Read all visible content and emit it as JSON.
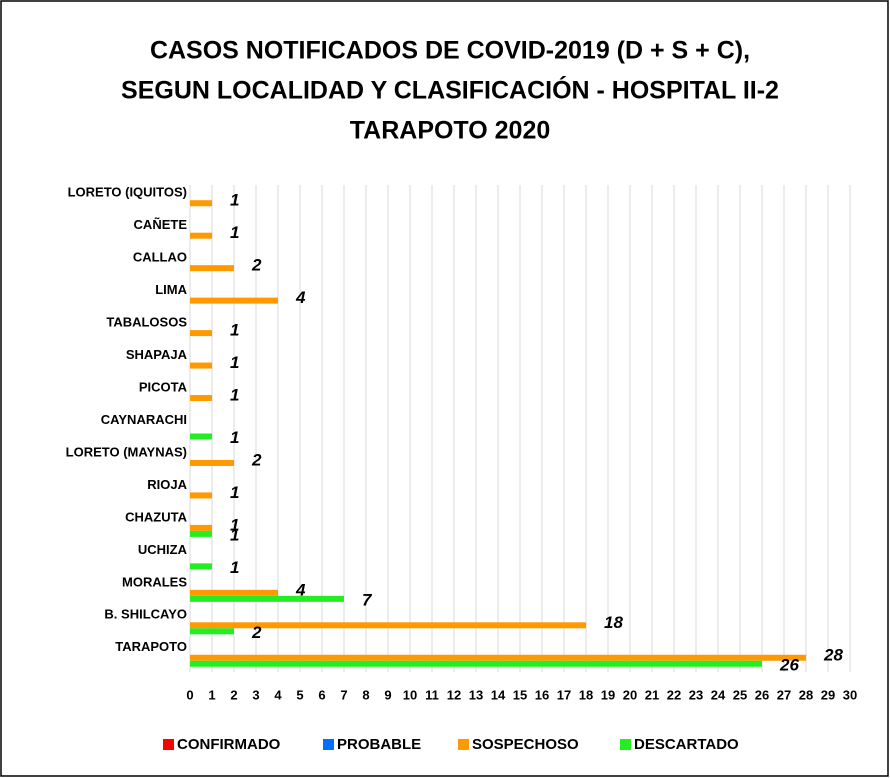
{
  "chart_data": {
    "type": "hbar",
    "title": [
      "CASOS NOTIFICADOS DE COVID-2019 (D + S + C),",
      "SEGUN LOCALIDAD Y CLASIFICACIÓN - HOSPITAL II-2",
      "TARAPOTO 2020"
    ],
    "categories": [
      "TARAPOTO",
      "B. SHILCAYO",
      "MORALES",
      "UCHIZA",
      "CHAZUTA",
      "RIOJA",
      "LORETO (MAYNAS)",
      "CAYNARACHI",
      "PICOTA",
      "SHAPAJA",
      "TABALOSOS",
      "LIMA",
      "CALLAO",
      "CAÑETE",
      "LORETO (IQUITOS)"
    ],
    "series": [
      {
        "name": "CONFIRMADO",
        "color": "#ff0000",
        "values": [
          null,
          null,
          null,
          null,
          null,
          null,
          null,
          null,
          null,
          null,
          null,
          null,
          null,
          null,
          null
        ]
      },
      {
        "name": "PROBABLE",
        "color": "#0070ff",
        "values": [
          null,
          null,
          null,
          null,
          null,
          null,
          null,
          null,
          null,
          null,
          null,
          null,
          null,
          null,
          null
        ]
      },
      {
        "name": "SOSPECHOSO",
        "color": "#ff9900",
        "values": [
          28,
          18,
          4,
          null,
          1,
          1,
          2,
          null,
          1,
          1,
          1,
          4,
          2,
          1,
          1
        ]
      },
      {
        "name": "DESCARTADO",
        "color": "#22ee22",
        "values": [
          26,
          2,
          7,
          1,
          1,
          null,
          null,
          1,
          null,
          null,
          null,
          null,
          null,
          null,
          null
        ]
      }
    ],
    "xlim": [
      0,
      30
    ],
    "xticks": [
      0,
      1,
      2,
      3,
      4,
      5,
      6,
      7,
      8,
      9,
      10,
      11,
      12,
      13,
      14,
      15,
      16,
      17,
      18,
      19,
      20,
      21,
      22,
      23,
      24,
      25,
      26,
      27,
      28,
      29,
      30
    ],
    "grid": true
  }
}
